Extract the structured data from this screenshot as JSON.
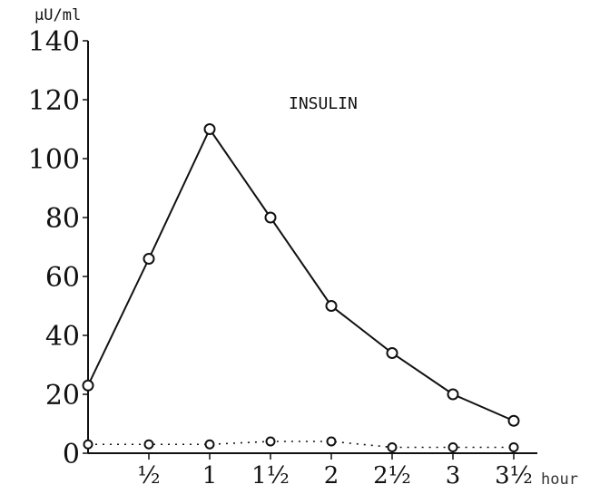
{
  "chart_data": {
    "type": "line",
    "title": "INSULIN",
    "ylabel": "µU/ml",
    "xlabel": "hour",
    "x": [
      0,
      0.5,
      1,
      1.5,
      2,
      2.5,
      3,
      3.5
    ],
    "x_tick_labels": [
      "½",
      "1",
      "1½",
      "2",
      "2½",
      "3",
      "3½"
    ],
    "x_tick_values": [
      0.5,
      1,
      1.5,
      2,
      2.5,
      3,
      3.5
    ],
    "y_ticks": [
      0,
      20,
      40,
      60,
      80,
      100,
      120,
      140
    ],
    "ylim": [
      0,
      140
    ],
    "xlim": [
      0,
      3.5
    ],
    "grid": false,
    "series": [
      {
        "values": [
          23,
          66,
          110,
          80,
          50,
          34,
          20,
          11
        ],
        "style": "solid"
      },
      {
        "values": [
          3,
          3,
          3,
          4,
          4,
          2,
          2,
          2
        ],
        "style": "dotted"
      }
    ]
  }
}
